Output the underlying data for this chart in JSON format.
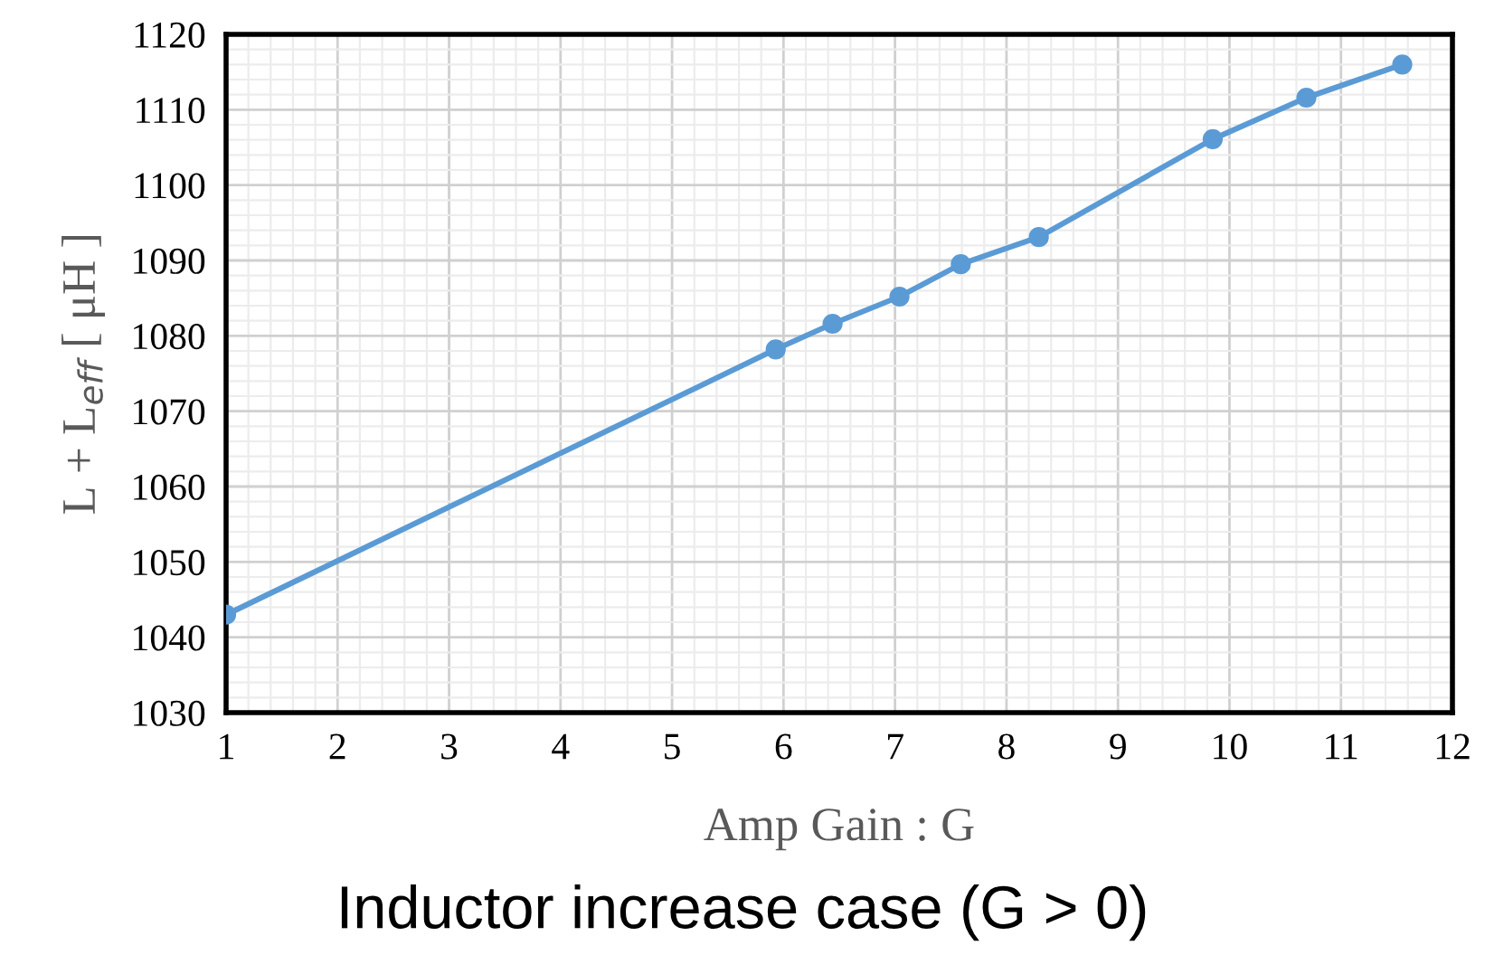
{
  "chart_data": {
    "type": "line",
    "title": "Inductor increase case (G > 0)",
    "xlabel": "Amp Gain : G",
    "ylabel": "L + L$_{eff}$ [ μH ]",
    "x": [
      1,
      5.93,
      6.44,
      7.04,
      7.59,
      8.29,
      9.85,
      10.69,
      11.55
    ],
    "series": [
      {
        "color": "#5b9bd5",
        "values": [
          1043.0,
          1078.2,
          1081.6,
          1085.2,
          1089.5,
          1093.1,
          1106.1,
          1111.6,
          1116.0
        ]
      }
    ],
    "xlim": [
      1,
      12
    ],
    "xticks": [
      1,
      2,
      3,
      4,
      5,
      6,
      7,
      8,
      9,
      10,
      11,
      12
    ],
    "ylim": [
      1030,
      1120
    ],
    "yticks": [
      1030,
      1040,
      1050,
      1060,
      1070,
      1080,
      1090,
      1100,
      1110,
      1120
    ],
    "grid": true,
    "marker": "circle",
    "line_style": "solid"
  }
}
